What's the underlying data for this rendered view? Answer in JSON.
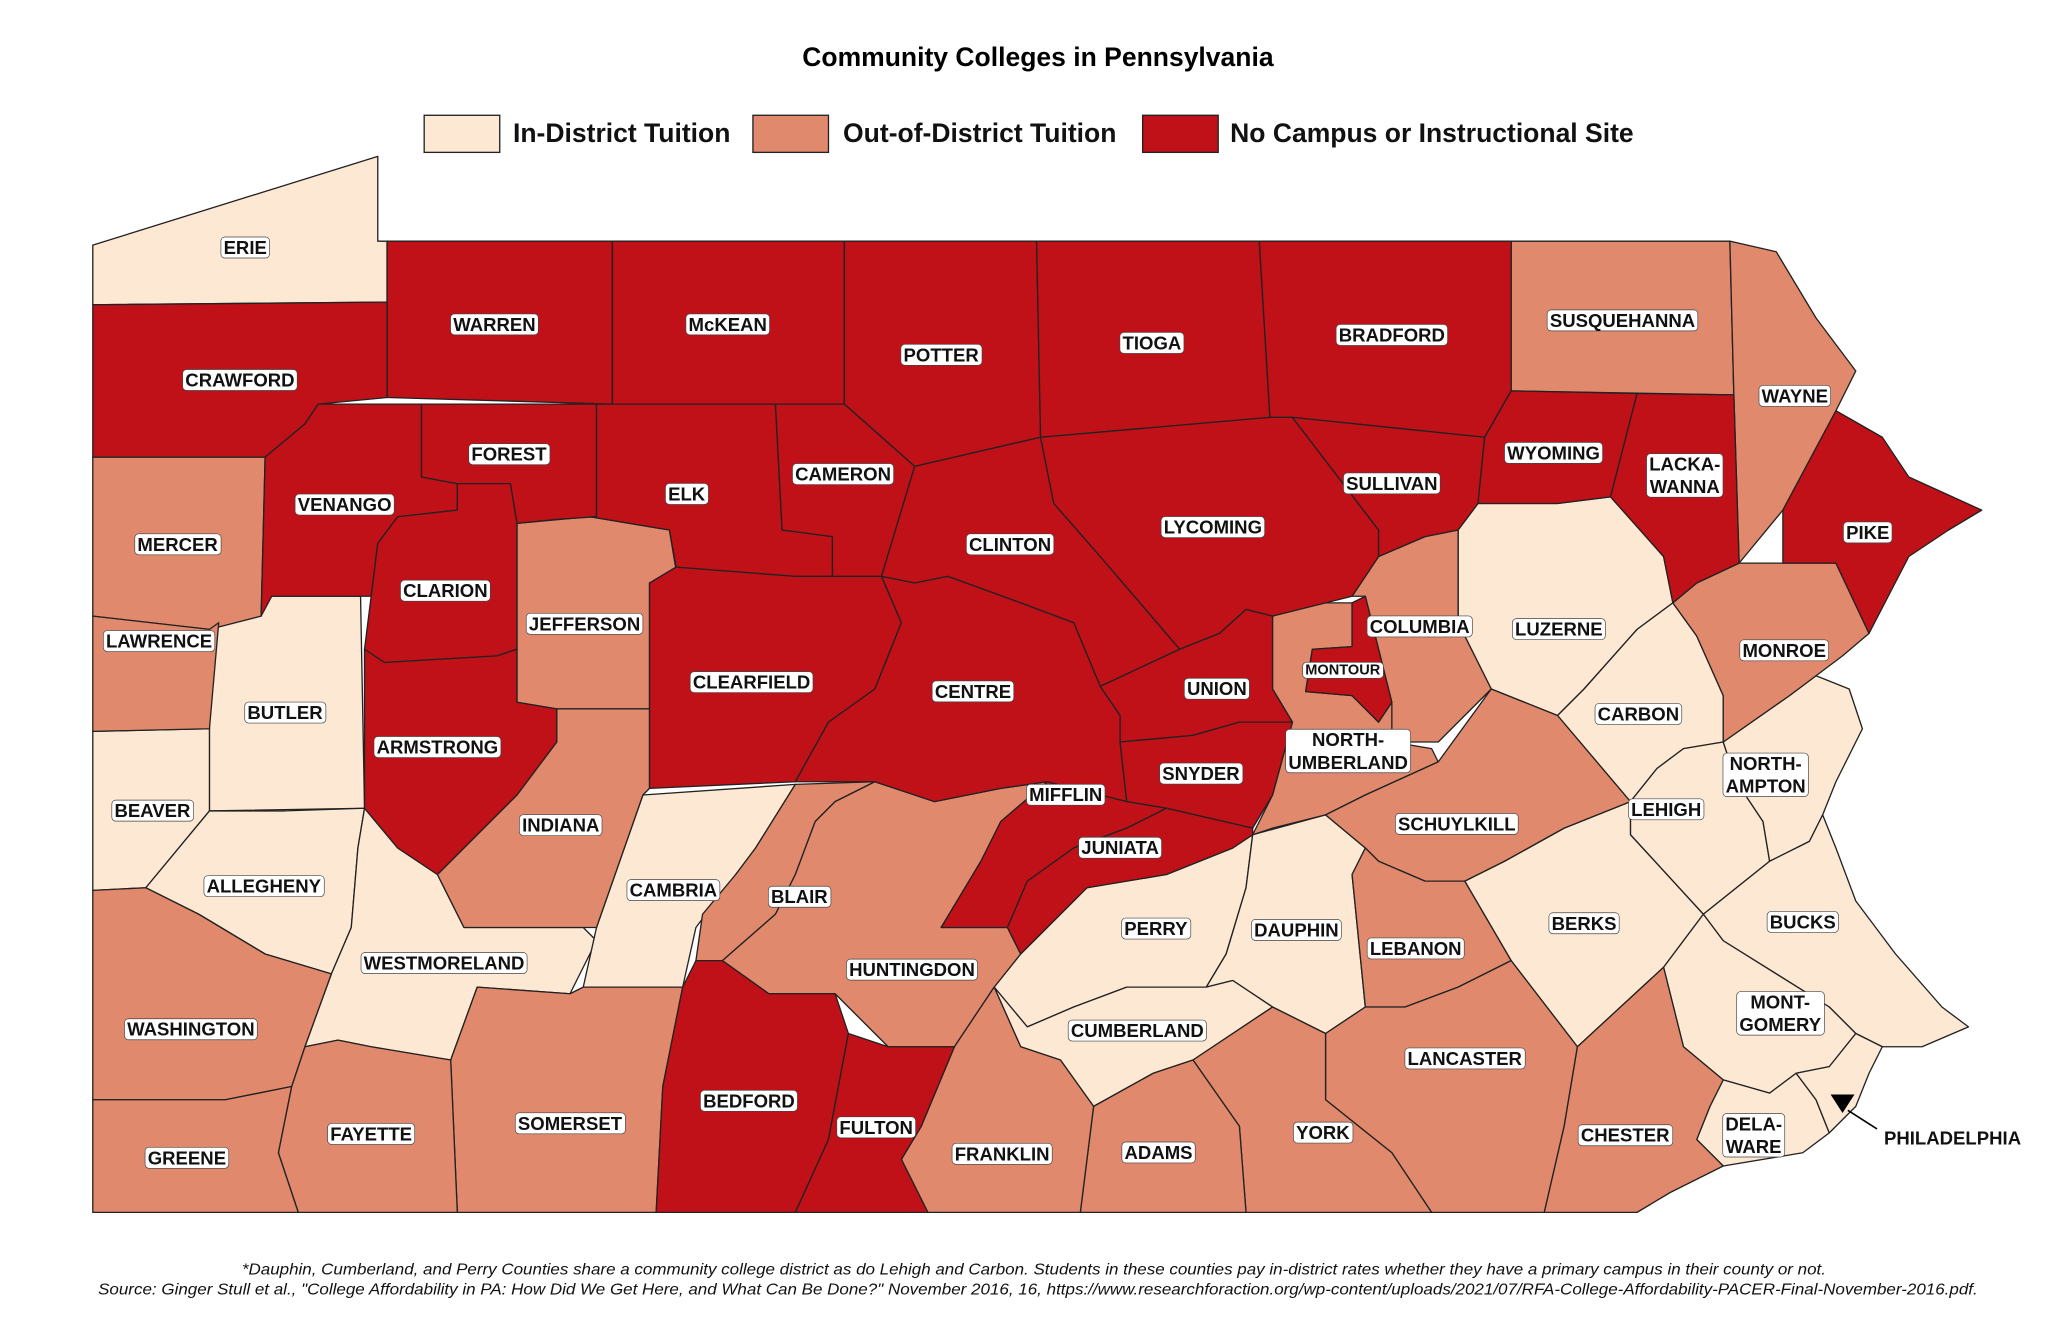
{
  "title": "Community Colleges in Pennsylvania",
  "legend": [
    {
      "label": "In-District Tuition",
      "color": "#fce8d3",
      "counties": [
        {
          "label": [
            "ERIE"
          ]
        },
        {
          "label": [
            "BUTLER"
          ]
        },
        {
          "label": [
            "BEAVER"
          ]
        },
        {
          "label": [
            "ALLEGHENY"
          ]
        },
        {
          "label": [
            "WESTMORELAND"
          ]
        },
        {
          "label": [
            "CAMBRIA"
          ]
        },
        {
          "label": [
            "PERRY"
          ]
        },
        {
          "label": [
            "DAUPHIN"
          ]
        },
        {
          "label": [
            "CUMBERLAND"
          ]
        },
        {
          "label": [
            "LUZERNE"
          ]
        },
        {
          "label": [
            "CARBON"
          ]
        },
        {
          "label": [
            "LEHIGH"
          ]
        },
        {
          "label": [
            "NORTH-",
            "AMPTON"
          ]
        },
        {
          "label": [
            "BERKS"
          ]
        },
        {
          "label": [
            "BUCKS"
          ]
        },
        {
          "label": [
            "MONT-",
            "GOMERY"
          ]
        },
        {
          "label": [
            "DELA-",
            "WARE"
          ]
        },
        {
          "label": [
            "PHILADELPHIA"
          ]
        }
      ]
    },
    {
      "label": "Out-of-District Tuition",
      "color": "#e0896c",
      "counties": [
        {
          "label": [
            "SUSQUEHANNA"
          ]
        },
        {
          "label": [
            "WAYNE"
          ]
        },
        {
          "label": [
            "MERCER"
          ]
        },
        {
          "label": [
            "LAWRENCE"
          ]
        },
        {
          "label": [
            "JEFFERSON"
          ]
        },
        {
          "label": [
            "INDIANA"
          ]
        },
        {
          "label": [
            "BLAIR"
          ]
        },
        {
          "label": [
            "HUNTINGDON"
          ]
        },
        {
          "label": [
            "COLUMBIA"
          ]
        },
        {
          "label": [
            "NORTH-",
            "UMBERLAND"
          ]
        },
        {
          "label": [
            "MONROE"
          ]
        },
        {
          "label": [
            "SCHUYLKILL"
          ]
        },
        {
          "label": [
            "LEBANON"
          ]
        },
        {
          "label": [
            "LANCASTER"
          ]
        },
        {
          "label": [
            "CHESTER"
          ]
        },
        {
          "label": [
            "YORK"
          ]
        },
        {
          "label": [
            "ADAMS"
          ]
        },
        {
          "label": [
            "FRANKLIN"
          ]
        },
        {
          "label": [
            "SOMERSET"
          ]
        },
        {
          "label": [
            "FAYETTE"
          ]
        },
        {
          "label": [
            "WASHINGTON"
          ]
        },
        {
          "label": [
            "GREENE"
          ]
        }
      ]
    },
    {
      "label": "No Campus or Instructional Site",
      "color": "#c01018",
      "counties": [
        {
          "label": [
            "WARREN"
          ]
        },
        {
          "label": [
            "McKEAN"
          ]
        },
        {
          "label": [
            "POTTER"
          ]
        },
        {
          "label": [
            "TIOGA"
          ]
        },
        {
          "label": [
            "BRADFORD"
          ]
        },
        {
          "label": [
            "CRAWFORD"
          ]
        },
        {
          "label": [
            "VENANGO"
          ]
        },
        {
          "label": [
            "FOREST"
          ]
        },
        {
          "label": [
            "CLARION"
          ]
        },
        {
          "label": [
            "ELK"
          ]
        },
        {
          "label": [
            "CAMERON"
          ]
        },
        {
          "label": [
            "CLINTON"
          ]
        },
        {
          "label": [
            "LYCOMING"
          ]
        },
        {
          "label": [
            "SULLIVAN"
          ]
        },
        {
          "label": [
            "WYOMING"
          ]
        },
        {
          "label": [
            "LACKA-",
            "WANNA"
          ]
        },
        {
          "label": [
            "PIKE"
          ]
        },
        {
          "label": [
            "ARMSTRONG"
          ]
        },
        {
          "label": [
            "CLEARFIELD"
          ]
        },
        {
          "label": [
            "CENTRE"
          ]
        },
        {
          "label": [
            "UNION"
          ]
        },
        {
          "label": [
            "MONTOUR"
          ]
        },
        {
          "label": [
            "SNYDER"
          ]
        },
        {
          "label": [
            "MIFFLIN"
          ]
        },
        {
          "label": [
            "JUNIATA"
          ]
        },
        {
          "label": [
            "BEDFORD"
          ]
        },
        {
          "label": [
            "FULTON"
          ]
        }
      ]
    }
  ],
  "note": "*Dauphin, Cumberland, and Perry Counties share a community college district as do Lehigh and Carbon. Students in these counties pay in-district rates whether they have a primary campus in their county or not.",
  "source": "Source: Ginger Stull et al., \"College Affordability in PA: How Did We Get Here, and What Can Be Done?\" November 2016, 16, https://www.researchforaction.org/wp-content/uploads/2021/07/RFA-College-Affordability-PACER-Final-November-2016.pdf."
}
